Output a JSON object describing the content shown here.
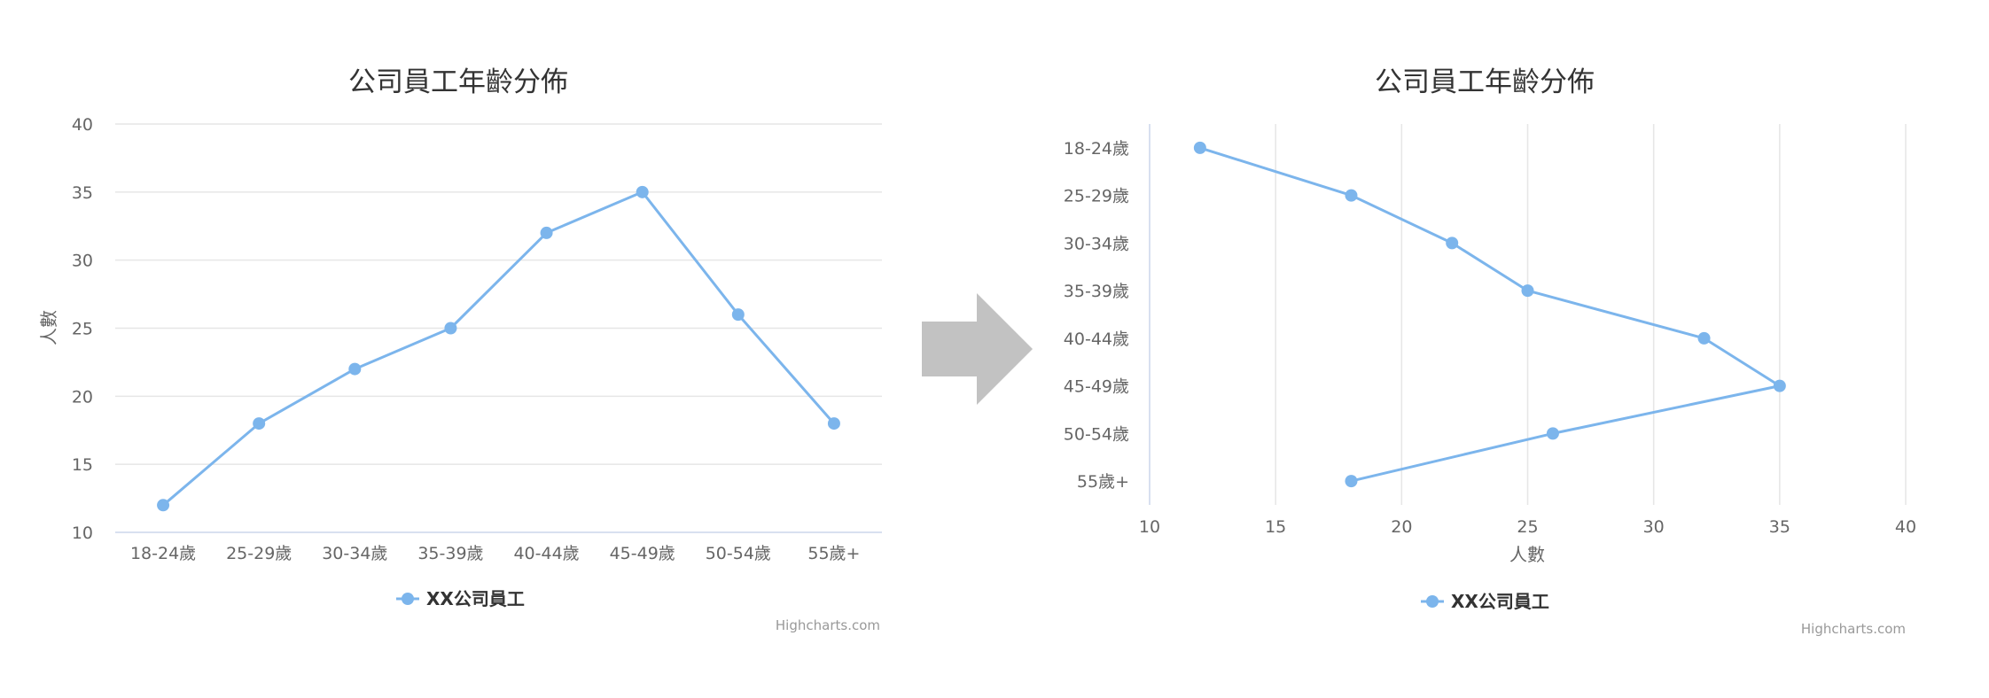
{
  "colors": {
    "series": "#7cb5ec",
    "arrow": "#c2c2c2"
  },
  "chart_data": [
    {
      "type": "line",
      "orientation": "vertical",
      "title": "公司員工年齡分佈",
      "categories": [
        "18-24歲",
        "25-29歲",
        "30-34歲",
        "35-39歲",
        "40-44歲",
        "45-49歲",
        "50-54歲",
        "55歲+"
      ],
      "series": [
        {
          "name": "XX公司員工",
          "values": [
            12,
            18,
            22,
            25,
            32,
            35,
            26,
            18
          ]
        }
      ],
      "xlabel": "",
      "ylabel": "人數",
      "ylim": [
        10,
        40
      ],
      "ticks": [
        "10",
        "15",
        "20",
        "25",
        "30",
        "35",
        "40"
      ],
      "grid": true,
      "legend": "bottom-center",
      "credits": "Highcharts.com"
    },
    {
      "type": "line",
      "orientation": "horizontal",
      "title": "公司員工年齡分佈",
      "categories": [
        "18-24歲",
        "25-29歲",
        "30-34歲",
        "35-39歲",
        "40-44歲",
        "45-49歲",
        "50-54歲",
        "55歲+"
      ],
      "series": [
        {
          "name": "XX公司員工",
          "values": [
            12,
            18,
            22,
            25,
            32,
            35,
            26,
            18
          ]
        }
      ],
      "xlabel": "人數",
      "ylabel": "",
      "xlim": [
        10,
        40
      ],
      "ticks": [
        "10",
        "15",
        "20",
        "25",
        "30",
        "35",
        "40"
      ],
      "grid": true,
      "legend": "bottom-center",
      "credits": "Highcharts.com"
    }
  ]
}
